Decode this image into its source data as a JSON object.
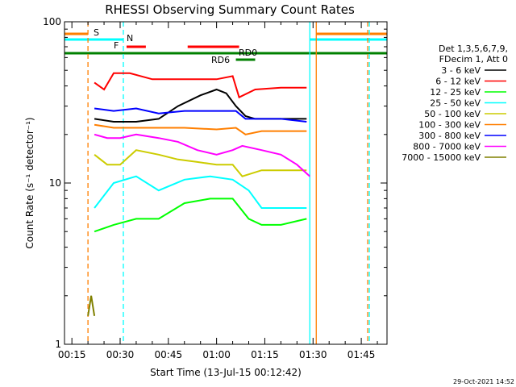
{
  "chart_data": {
    "type": "line",
    "title": "RHESSI Observing Summary Count Rates",
    "xlabel": "Start Time (13-Jul-15 00:12:42)",
    "ylabel": "Count Rate (s⁻¹ detector⁻¹)",
    "y_scale": "log",
    "ylim": [
      1,
      100
    ],
    "xlim": [
      "00:12:42",
      "01:53:00"
    ],
    "x_ticks": [
      "00:15",
      "00:30",
      "00:45",
      "01:00",
      "01:15",
      "01:30",
      "01:45"
    ],
    "y_ticks": [
      "1",
      "10",
      "100"
    ],
    "legend_title_1": "Det 1,3,5,6,7,9,",
    "legend_title_2": "FDecim 1, Att 0",
    "legend_position": "right",
    "timestamp": "29-Oct-2021 14:52",
    "series": [
      {
        "name": "3 - 6 keV",
        "color": "#000000",
        "points": [
          [
            "00:22",
            25
          ],
          [
            "00:28",
            24
          ],
          [
            "00:35",
            24
          ],
          [
            "00:42",
            25
          ],
          [
            "00:48",
            30
          ],
          [
            "00:55",
            35
          ],
          [
            "01:00",
            38
          ],
          [
            "01:03",
            36
          ],
          [
            "01:06",
            30
          ],
          [
            "01:09",
            26
          ],
          [
            "01:12",
            25
          ],
          [
            "01:20",
            25
          ],
          [
            "01:28",
            25
          ]
        ]
      },
      {
        "name": "6 - 12 keV",
        "color": "#ff0000",
        "points": [
          [
            "00:22",
            42
          ],
          [
            "00:25",
            38
          ],
          [
            "00:28",
            48
          ],
          [
            "00:33",
            48
          ],
          [
            "00:40",
            44
          ],
          [
            "00:50",
            44
          ],
          [
            "01:00",
            44
          ],
          [
            "01:05",
            46
          ],
          [
            "01:07",
            34
          ],
          [
            "01:12",
            38
          ],
          [
            "01:20",
            39
          ],
          [
            "01:28",
            39
          ]
        ]
      },
      {
        "name": "12 - 25 keV",
        "color": "#00ff00",
        "points": [
          [
            "00:22",
            5
          ],
          [
            "00:28",
            5.5
          ],
          [
            "00:35",
            6
          ],
          [
            "00:42",
            6
          ],
          [
            "00:50",
            7.5
          ],
          [
            "00:58",
            8
          ],
          [
            "01:05",
            8
          ],
          [
            "01:10",
            6
          ],
          [
            "01:14",
            5.5
          ],
          [
            "01:20",
            5.5
          ],
          [
            "01:28",
            6
          ]
        ]
      },
      {
        "name": "25 - 50 keV",
        "color": "#00ffff",
        "points": [
          [
            "00:22",
            7
          ],
          [
            "00:28",
            10
          ],
          [
            "00:35",
            11
          ],
          [
            "00:42",
            9
          ],
          [
            "00:50",
            10.5
          ],
          [
            "00:58",
            11
          ],
          [
            "01:05",
            10.5
          ],
          [
            "01:10",
            9
          ],
          [
            "01:14",
            7
          ],
          [
            "01:20",
            7
          ],
          [
            "01:28",
            7
          ]
        ]
      },
      {
        "name": "50 - 100 keV",
        "color": "#cccc00",
        "points": [
          [
            "00:22",
            15
          ],
          [
            "00:26",
            13
          ],
          [
            "00:30",
            13
          ],
          [
            "00:35",
            16
          ],
          [
            "00:42",
            15
          ],
          [
            "00:48",
            14
          ],
          [
            "00:54",
            13.5
          ],
          [
            "01:00",
            13
          ],
          [
            "01:05",
            13
          ],
          [
            "01:08",
            11
          ],
          [
            "01:14",
            12
          ],
          [
            "01:20",
            12
          ],
          [
            "01:28",
            12
          ]
        ]
      },
      {
        "name": "100 - 300 keV",
        "color": "#ff7f00",
        "points": [
          [
            "00:22",
            23
          ],
          [
            "00:28",
            22
          ],
          [
            "00:35",
            22
          ],
          [
            "00:42",
            22
          ],
          [
            "00:50",
            22
          ],
          [
            "01:00",
            21.5
          ],
          [
            "01:06",
            22
          ],
          [
            "01:09",
            20
          ],
          [
            "01:14",
            21
          ],
          [
            "01:20",
            21
          ],
          [
            "01:28",
            21
          ]
        ]
      },
      {
        "name": "300 - 800 keV",
        "color": "#0000ff",
        "points": [
          [
            "00:22",
            29
          ],
          [
            "00:28",
            28
          ],
          [
            "00:35",
            29
          ],
          [
            "00:42",
            27
          ],
          [
            "00:50",
            28
          ],
          [
            "01:00",
            28
          ],
          [
            "01:06",
            28
          ],
          [
            "01:09",
            25
          ],
          [
            "01:14",
            25
          ],
          [
            "01:20",
            25
          ],
          [
            "01:28",
            24
          ]
        ]
      },
      {
        "name": "800 - 7000 keV",
        "color": "#ff00ff",
        "points": [
          [
            "00:22",
            20
          ],
          [
            "00:26",
            19
          ],
          [
            "00:30",
            19
          ],
          [
            "00:35",
            20
          ],
          [
            "00:42",
            19
          ],
          [
            "00:48",
            18
          ],
          [
            "00:54",
            16
          ],
          [
            "01:00",
            15
          ],
          [
            "01:05",
            16
          ],
          [
            "01:08",
            17
          ],
          [
            "01:14",
            16
          ],
          [
            "01:20",
            15
          ],
          [
            "01:25",
            13
          ],
          [
            "01:29",
            11
          ]
        ]
      },
      {
        "name": "7000 - 15000 keV",
        "color": "#808000",
        "points": [
          [
            "00:20",
            1.5
          ],
          [
            "00:21",
            2
          ],
          [
            "00:22",
            1.5
          ]
        ]
      }
    ],
    "annotations": [
      {
        "label": "S",
        "color": "#ff7f00"
      },
      {
        "label": "N",
        "color": "#00ffff"
      },
      {
        "label": "F",
        "color": "#ff0000"
      },
      {
        "label": "RD0",
        "color": "#008000"
      },
      {
        "label": "RD6",
        "color": "#008000"
      }
    ]
  }
}
